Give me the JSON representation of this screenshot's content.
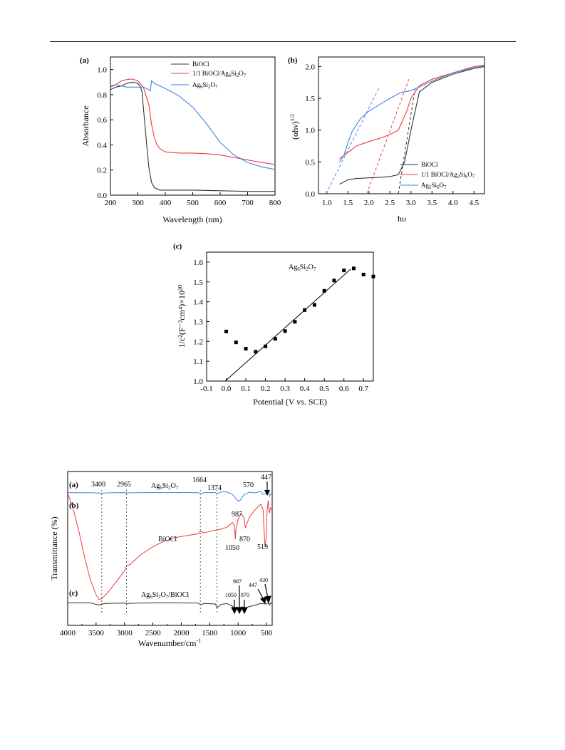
{
  "colors": {
    "black": "#333333",
    "red": "#ee3b3b",
    "blue": "#3d85e0",
    "axis": "#000000"
  },
  "chart_data": [
    {
      "id": "a",
      "type": "line",
      "panel_label": "(a)",
      "xlabel": "Wavelength (nm)",
      "ylabel": "Absorbance",
      "xlim": [
        200,
        800
      ],
      "ylim": [
        0,
        1.1
      ],
      "xticks": [
        "200",
        "300",
        "400",
        "500",
        "600",
        "700",
        "800"
      ],
      "yticks": [
        "0.0",
        "0.2",
        "0.4",
        "0.6",
        "0.8",
        "1.0"
      ],
      "legend_position": "top-right",
      "series": [
        {
          "name": "BiOCl",
          "color": "#333333",
          "x": [
            200,
            220,
            240,
            260,
            280,
            300,
            310,
            315,
            320,
            330,
            340,
            350,
            360,
            380,
            400,
            450,
            500,
            600,
            700,
            800
          ],
          "y": [
            0.84,
            0.86,
            0.87,
            0.89,
            0.9,
            0.89,
            0.86,
            0.82,
            0.7,
            0.45,
            0.22,
            0.1,
            0.06,
            0.04,
            0.04,
            0.04,
            0.04,
            0.035,
            0.03,
            0.03
          ]
        },
        {
          "name": "1/1 BiOCl/Ag6Si2O7",
          "color": "#ee3b3b",
          "x": [
            200,
            220,
            240,
            260,
            280,
            300,
            320,
            340,
            350,
            360,
            370,
            380,
            400,
            450,
            500,
            550,
            600,
            650,
            700,
            750,
            800
          ],
          "y": [
            0.86,
            0.88,
            0.91,
            0.92,
            0.925,
            0.91,
            0.86,
            0.72,
            0.56,
            0.46,
            0.4,
            0.37,
            0.345,
            0.335,
            0.335,
            0.33,
            0.32,
            0.3,
            0.28,
            0.26,
            0.245
          ]
        },
        {
          "name": "Ag6Si2O7",
          "color": "#3d85e0",
          "x": [
            200,
            220,
            240,
            260,
            280,
            300,
            320,
            340,
            345,
            350,
            360,
            380,
            400,
            450,
            500,
            550,
            600,
            650,
            700,
            750,
            800
          ],
          "y": [
            0.87,
            0.88,
            0.87,
            0.86,
            0.86,
            0.86,
            0.86,
            0.84,
            0.83,
            0.91,
            0.89,
            0.87,
            0.85,
            0.79,
            0.7,
            0.57,
            0.42,
            0.32,
            0.26,
            0.225,
            0.205
          ]
        }
      ]
    },
    {
      "id": "b",
      "type": "line",
      "panel_label": "(b)",
      "xlabel": "hυ",
      "ylabel_main": "(αhν)",
      "ylabel_sup": "1/2",
      "xlim": [
        0.8,
        4.75
      ],
      "ylim": [
        0,
        2.15
      ],
      "xticks": [
        "1.0",
        "1.5",
        "2.0",
        "2.5",
        "3.0",
        "3.5",
        "4.0",
        "4.5"
      ],
      "yticks": [
        "0.0",
        "0.5",
        "1.0",
        "1.5",
        "2.0"
      ],
      "legend_position": "bottom-right",
      "series": [
        {
          "name": "BiOCl",
          "color": "#333333",
          "x": [
            1.3,
            1.5,
            1.7,
            2.0,
            2.3,
            2.5,
            2.7,
            2.85,
            3.0,
            3.2,
            3.5,
            4.0,
            4.5,
            4.75
          ],
          "y": [
            0.15,
            0.22,
            0.24,
            0.25,
            0.26,
            0.27,
            0.3,
            0.5,
            1.0,
            1.6,
            1.75,
            1.88,
            1.97,
            2.0
          ]
        },
        {
          "name": "1/1 BiOCl/Ag2Si6O7",
          "color": "#ee3b3b",
          "x": [
            1.3,
            1.5,
            1.7,
            2.0,
            2.3,
            2.5,
            2.7,
            2.9,
            3.0,
            3.2,
            3.5,
            4.0,
            4.5,
            4.75
          ],
          "y": [
            0.55,
            0.65,
            0.75,
            0.82,
            0.88,
            0.93,
            1.0,
            1.3,
            1.5,
            1.7,
            1.8,
            1.9,
            2.0,
            2.02
          ]
        },
        {
          "name": "Ag2Si6O7",
          "color": "#3d85e0",
          "x": [
            1.3,
            1.4,
            1.5,
            1.6,
            1.7,
            1.8,
            2.0,
            2.3,
            2.5,
            2.7,
            2.8,
            2.85,
            3.0,
            3.2,
            3.5,
            4.0,
            4.5,
            4.75
          ],
          "y": [
            0.5,
            0.6,
            0.8,
            0.98,
            1.08,
            1.18,
            1.3,
            1.42,
            1.5,
            1.57,
            1.6,
            1.6,
            1.62,
            1.68,
            1.77,
            1.9,
            1.98,
            2.01
          ]
        }
      ],
      "tangents": [
        {
          "color": "#3d85e0",
          "x": [
            0.98,
            2.25
          ],
          "y": [
            0.0,
            1.68
          ]
        },
        {
          "color": "#ee3b3b",
          "x": [
            1.95,
            2.95
          ],
          "y": [
            0.0,
            1.8
          ]
        },
        {
          "color": "#333333",
          "x": [
            2.7,
            3.1
          ],
          "y": [
            0.0,
            1.66
          ]
        }
      ]
    },
    {
      "id": "c",
      "type": "scatter",
      "panel_label": "(c)",
      "xlabel": "Potential (V vs. SCE)",
      "ylabel": "1/c²(F⁻²cm⁴)×10²⁰",
      "series_label": "Ag6Si2O7",
      "xlim": [
        -0.1,
        0.75
      ],
      "ylim": [
        1.0,
        1.65
      ],
      "xticks": [
        "-0.1",
        "0.0",
        "0.1",
        "0.2",
        "0.3",
        "0.4",
        "0.5",
        "0.6",
        "0.7"
      ],
      "yticks": [
        "1.0",
        "1.1",
        "1.2",
        "1.3",
        "1.4",
        "1.5",
        "1.6"
      ],
      "points": {
        "x": [
          0.0,
          0.05,
          0.1,
          0.15,
          0.2,
          0.25,
          0.3,
          0.35,
          0.4,
          0.45,
          0.5,
          0.55,
          0.6,
          0.65,
          0.7,
          0.75
        ],
        "y": [
          1.25,
          1.195,
          1.163,
          1.148,
          1.175,
          1.213,
          1.252,
          1.299,
          1.358,
          1.384,
          1.455,
          1.507,
          1.558,
          1.568,
          1.537,
          1.527
        ]
      },
      "fit_line": {
        "x": [
          -0.005,
          0.635
        ],
        "y": [
          1.0,
          1.565
        ]
      }
    },
    {
      "id": "d",
      "type": "line",
      "panel_label": "",
      "xlabel": "Wavenumber/cm",
      "xlabel_sup": "-1",
      "ylabel": "Transmittance (%)",
      "xlim": [
        4000,
        400
      ],
      "reversed_x": true,
      "xticks": [
        "4000",
        "3500",
        "3000",
        "2500",
        "2000",
        "1500",
        "1000",
        "500"
      ],
      "series": [
        {
          "name": "Ag6Si2O7",
          "label": "(a)",
          "color": "#3d85e0",
          "x": [
            4000,
            3800,
            3600,
            3400,
            3200,
            3000,
            2965,
            2800,
            2500,
            2000,
            1700,
            1664,
            1600,
            1400,
            1374,
            1300,
            1200,
            1100,
            1050,
            1000,
            987,
            950,
            900,
            800,
            700,
            600,
            570,
            500,
            470,
            447,
            430,
            400
          ],
          "y": [
            0.9,
            0.9,
            0.9,
            1.2,
            0.9,
            0.8,
            1.0,
            0.9,
            0.8,
            0.8,
            0.8,
            1.6,
            0.8,
            0.8,
            1.6,
            0.4,
            0.3,
            2.0,
            4.5,
            6.5,
            7.0,
            5.5,
            2.5,
            0.5,
            1.0,
            0.0,
            2.0,
            1.5,
            0.5,
            3.5,
            1.8,
            1.0
          ]
        },
        {
          "name": "BiOCl",
          "label": "(b)",
          "color": "#ee3b3b",
          "x": [
            4000,
            3900,
            3800,
            3700,
            3600,
            3500,
            3450,
            3400,
            3300,
            3200,
            3100,
            3000,
            2965,
            2900,
            2700,
            2500,
            2300,
            2100,
            1900,
            1700,
            1664,
            1600,
            1400,
            1300,
            1200,
            1100,
            1060,
            1050,
            1040,
            1000,
            950,
            900,
            870,
            850,
            800,
            700,
            600,
            560,
            540,
            530,
            519,
            505,
            490,
            470,
            450,
            430,
            400
          ],
          "y": [
            -3.0,
            6.0,
            18.0,
            32.0,
            44.0,
            52.0,
            54.5,
            54.0,
            51.0,
            47.0,
            43.0,
            39.0,
            36.5,
            35.5,
            30.0,
            26.0,
            23.0,
            21.0,
            20.0,
            19.0,
            17.5,
            18.5,
            17.0,
            16.5,
            15.5,
            13.0,
            15.0,
            22.0,
            17.0,
            11.0,
            8.0,
            10.0,
            16.0,
            14.0,
            10.0,
            6.0,
            3.0,
            6.0,
            18.0,
            24.0,
            26.0,
            20.0,
            7.0,
            1.0,
            8.0,
            5.0,
            6.0
          ]
        },
        {
          "name": "Ag6Si2O7/BiOCl",
          "label": "(c)",
          "color": "#333333",
          "x": [
            4000,
            3800,
            3600,
            3450,
            3400,
            3300,
            3000,
            2965,
            2800,
            2500,
            2000,
            1700,
            1664,
            1600,
            1450,
            1400,
            1374,
            1300,
            1200,
            1100,
            1050,
            1030,
            1000,
            987,
            950,
            900,
            870,
            850,
            800,
            700,
            600,
            500,
            470,
            447,
            430,
            400
          ],
          "y": [
            0.5,
            0.5,
            0.5,
            1.5,
            1.0,
            0.7,
            0.6,
            0.8,
            0.6,
            0.5,
            0.5,
            0.6,
            1.4,
            0.8,
            0.9,
            1.0,
            2.8,
            1.2,
            0.8,
            2.0,
            3.0,
            2.4,
            2.6,
            3.2,
            2.4,
            2.4,
            3.0,
            2.6,
            2.2,
            1.5,
            0.8,
            1.0,
            0.5,
            1.5,
            0.5,
            1.0
          ]
        }
      ],
      "annotations": {
        "peaks_a": [
          "3400",
          "2965",
          "1664",
          "1374",
          "570",
          "447",
          "987"
        ],
        "sample_a": "Ag6Si2O7",
        "peaks_b": [
          "1050",
          "870",
          "519"
        ],
        "sample_b": "BiOCl",
        "peaks_c": [
          "1050",
          "987",
          "870",
          "447",
          "430"
        ],
        "sample_c": "Ag6Si2O7/BiOCl"
      }
    }
  ]
}
